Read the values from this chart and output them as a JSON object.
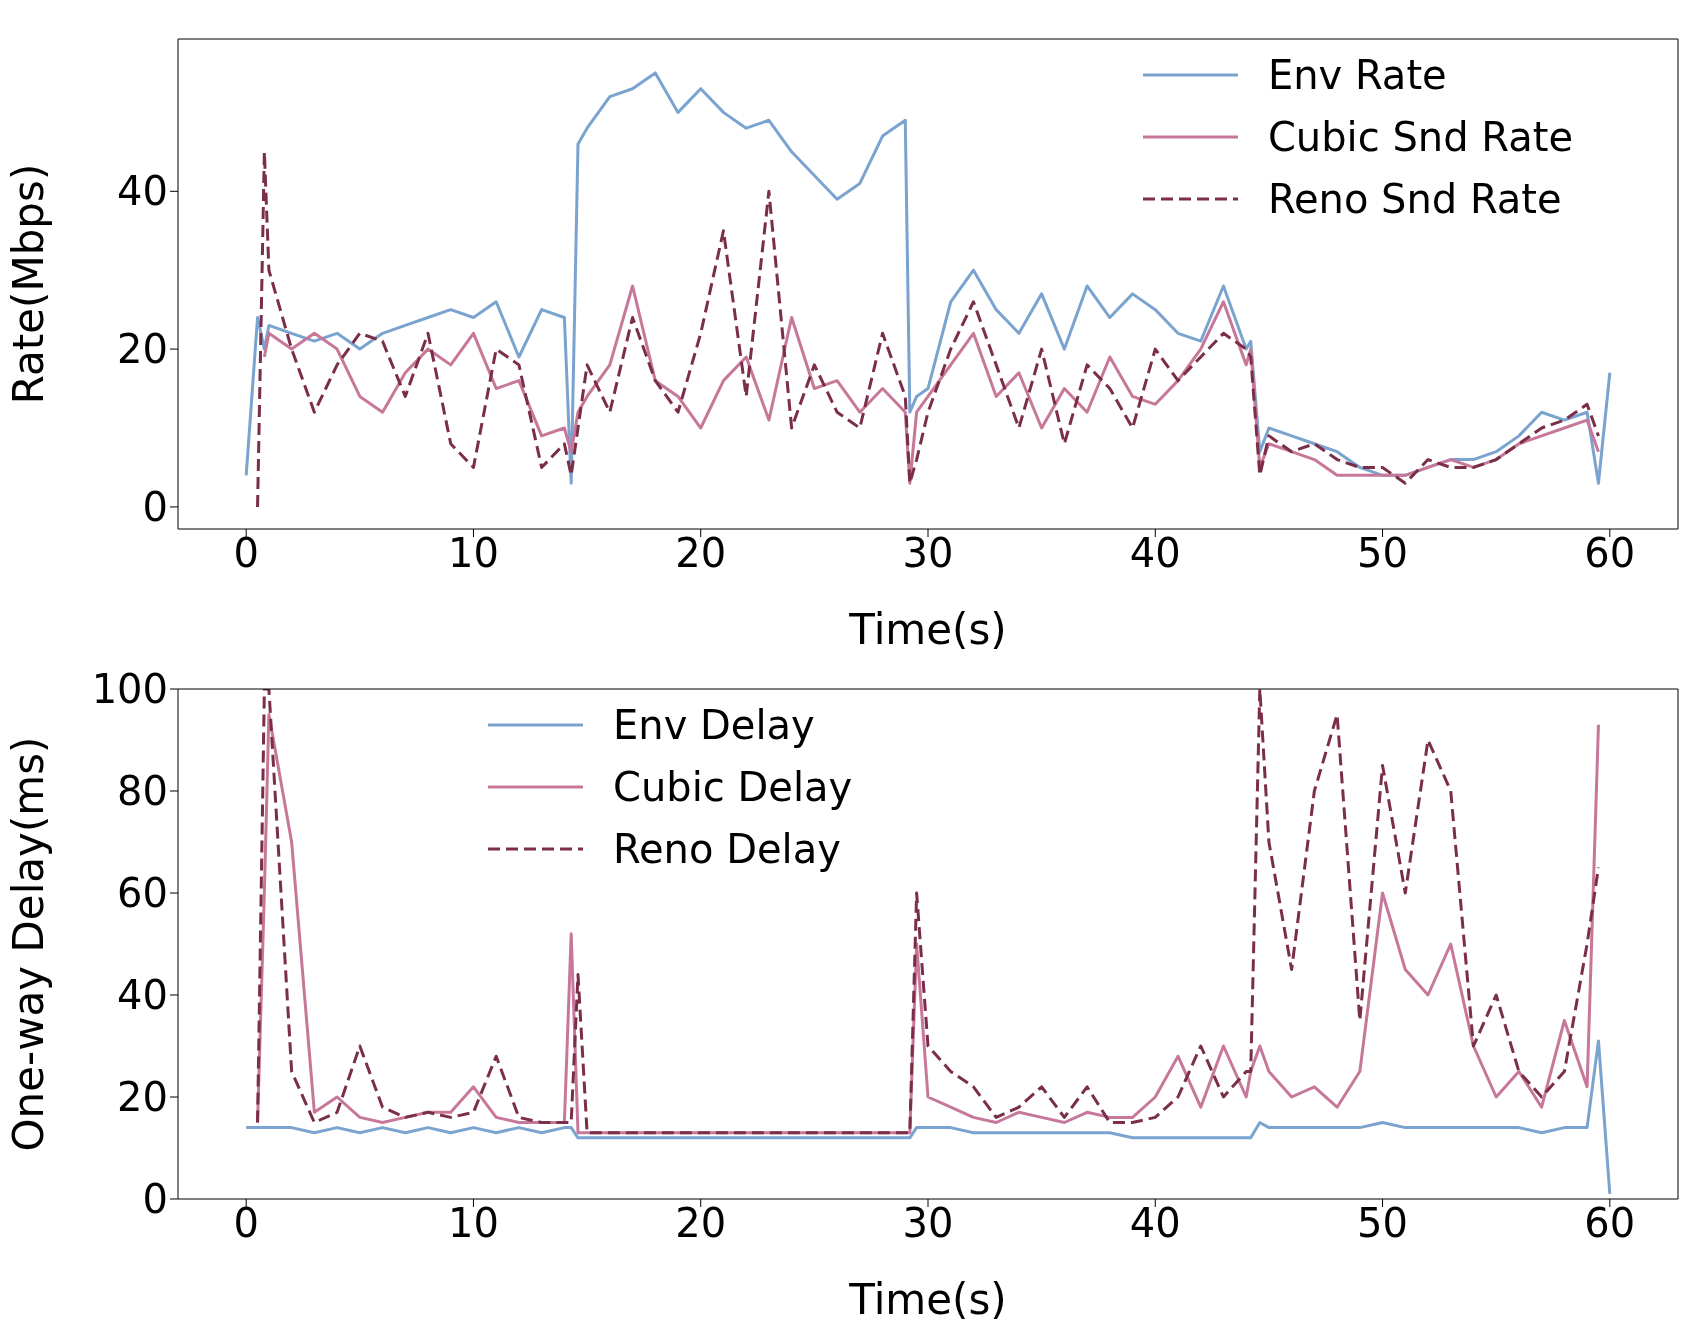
{
  "chart_data": [
    {
      "type": "line",
      "xlabel": "Time(s)",
      "ylabel": "Rate(Mbps)",
      "xlim": [
        -3,
        63
      ],
      "ylim": [
        -2.8,
        59.3
      ],
      "xticks": [
        0,
        10,
        20,
        30,
        40,
        50,
        60
      ],
      "yticks": [
        0,
        20,
        40
      ],
      "legend": "top right",
      "x": [
        0,
        0.5,
        0.8,
        1,
        2,
        3,
        4,
        5,
        6,
        7,
        8,
        9,
        10,
        11,
        12,
        13,
        14,
        14.3,
        14.6,
        15,
        16,
        17,
        18,
        19,
        20,
        21,
        22,
        23,
        24,
        25,
        26,
        27,
        28,
        29,
        29.2,
        29.5,
        30,
        31,
        32,
        33,
        34,
        35,
        36,
        37,
        38,
        39,
        40,
        41,
        42,
        43,
        44,
        44.2,
        44.6,
        45,
        46,
        47,
        48,
        49,
        50,
        51,
        52,
        53,
        54,
        55,
        56,
        57,
        58,
        59,
        59.5,
        60
      ],
      "series": [
        {
          "name": "Env Rate",
          "color": "#7ba3cf",
          "line_style": "solid",
          "values": [
            4,
            24,
            20,
            23,
            22,
            21,
            22,
            20,
            22,
            23,
            24,
            25,
            24,
            26,
            19,
            25,
            24,
            3,
            46,
            48,
            52,
            53,
            55,
            50,
            53,
            50,
            48,
            49,
            45,
            42,
            39,
            41,
            47,
            49,
            12,
            14,
            15,
            26,
            30,
            25,
            22,
            27,
            20,
            28,
            24,
            27,
            25,
            22,
            21,
            28,
            20,
            21,
            7,
            10,
            9,
            8,
            7,
            5,
            4,
            4,
            5,
            6,
            6,
            7,
            9,
            12,
            11,
            12,
            3,
            17
          ]
        },
        {
          "name": "Cubic Snd Rate",
          "color": "#c7789a",
          "line_style": "solid",
          "values": [
            null,
            null,
            19,
            22,
            20,
            22,
            20,
            14,
            12,
            17,
            20,
            18,
            22,
            15,
            16,
            9,
            10,
            7,
            12,
            14,
            18,
            28,
            16,
            14,
            10,
            16,
            19,
            11,
            24,
            15,
            16,
            12,
            15,
            12,
            3,
            12,
            14,
            18,
            22,
            14,
            17,
            10,
            15,
            12,
            19,
            14,
            13,
            16,
            20,
            26,
            18,
            20,
            5,
            8,
            7,
            6,
            4,
            4,
            4,
            4,
            5,
            6,
            5,
            6,
            8,
            9,
            10,
            11,
            7,
            null
          ]
        },
        {
          "name": "Reno Snd Rate",
          "color": "#7a2e48",
          "line_style": "dashed",
          "values": [
            null,
            0,
            45,
            30,
            20,
            12,
            18,
            22,
            21,
            14,
            22,
            8,
            5,
            20,
            18,
            5,
            8,
            4,
            10,
            18,
            12,
            24,
            16,
            12,
            22,
            35,
            14,
            40,
            10,
            18,
            12,
            10,
            22,
            14,
            3,
            6,
            12,
            20,
            26,
            18,
            10,
            20,
            8,
            18,
            15,
            10,
            20,
            16,
            19,
            22,
            20,
            19,
            4,
            9,
            7,
            8,
            6,
            5,
            5,
            3,
            6,
            5,
            5,
            6,
            8,
            10,
            11,
            13,
            9,
            null
          ]
        }
      ]
    },
    {
      "type": "line",
      "xlabel": "Time(s)",
      "ylabel": "One-way Delay(ms)",
      "xlim": [
        -3,
        63
      ],
      "ylim": [
        0,
        100
      ],
      "xticks": [
        0,
        10,
        20,
        30,
        40,
        50,
        60
      ],
      "yticks": [
        0,
        20,
        40,
        60,
        80,
        100
      ],
      "legend": "top",
      "x": [
        0,
        0.5,
        0.8,
        1,
        2,
        3,
        4,
        5,
        6,
        7,
        8,
        9,
        10,
        11,
        12,
        13,
        14,
        14.3,
        14.6,
        15,
        16,
        17,
        18,
        19,
        20,
        21,
        22,
        23,
        24,
        25,
        26,
        27,
        28,
        29,
        29.2,
        29.5,
        30,
        31,
        32,
        33,
        34,
        35,
        36,
        37,
        38,
        39,
        40,
        41,
        42,
        43,
        44,
        44.2,
        44.6,
        45,
        46,
        47,
        48,
        49,
        50,
        51,
        52,
        53,
        54,
        55,
        56,
        57,
        58,
        59,
        59.5,
        60
      ],
      "series": [
        {
          "name": "Env Delay",
          "color": "#7ba3cf",
          "line_style": "solid",
          "values": [
            14,
            14,
            14,
            14,
            14,
            13,
            14,
            13,
            14,
            13,
            14,
            13,
            14,
            13,
            14,
            13,
            14,
            14,
            12,
            12,
            12,
            12,
            12,
            12,
            12,
            12,
            12,
            12,
            12,
            12,
            12,
            12,
            12,
            12,
            12,
            14,
            14,
            14,
            13,
            13,
            13,
            13,
            13,
            13,
            13,
            12,
            12,
            12,
            12,
            12,
            12,
            12,
            15,
            14,
            14,
            14,
            14,
            14,
            15,
            14,
            14,
            14,
            14,
            14,
            14,
            13,
            14,
            14,
            31,
            1
          ]
        },
        {
          "name": "Cubic Delay",
          "color": "#c7789a",
          "line_style": "solid",
          "values": [
            null,
            15,
            60,
            95,
            70,
            17,
            20,
            16,
            15,
            16,
            17,
            17,
            22,
            16,
            15,
            15,
            15,
            52,
            13,
            13,
            13,
            13,
            13,
            13,
            13,
            13,
            13,
            13,
            13,
            13,
            13,
            13,
            13,
            13,
            13,
            50,
            20,
            18,
            16,
            15,
            17,
            16,
            15,
            17,
            16,
            16,
            20,
            28,
            18,
            30,
            20,
            25,
            30,
            25,
            20,
            22,
            18,
            25,
            60,
            45,
            40,
            50,
            30,
            20,
            25,
            18,
            35,
            22,
            93,
            null
          ]
        },
        {
          "name": "Reno Delay",
          "color": "#7a2e48",
          "line_style": "dashed",
          "values": [
            null,
            15,
            100,
            100,
            25,
            15,
            17,
            30,
            18,
            16,
            17,
            16,
            17,
            28,
            16,
            15,
            15,
            15,
            44,
            13,
            13,
            13,
            13,
            13,
            13,
            13,
            13,
            13,
            13,
            13,
            13,
            13,
            13,
            13,
            13,
            60,
            30,
            25,
            22,
            16,
            18,
            22,
            16,
            22,
            15,
            15,
            16,
            20,
            30,
            20,
            25,
            25,
            100,
            70,
            45,
            80,
            95,
            35,
            85,
            60,
            90,
            80,
            30,
            40,
            25,
            20,
            25,
            50,
            65,
            null
          ]
        }
      ]
    }
  ]
}
